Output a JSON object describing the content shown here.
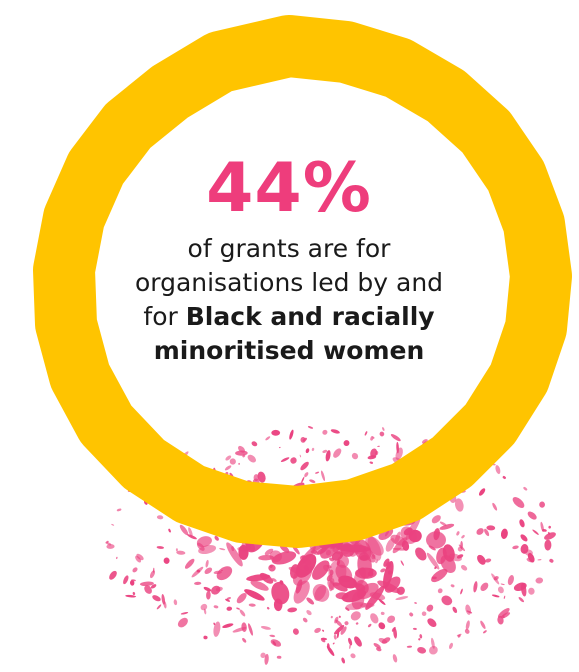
{
  "stat": {
    "percent": "44%",
    "desc_regular": "of grants are for organisations led by and for",
    "desc_bold": "Black and racially minoritised women"
  },
  "colors": {
    "ring": "#ffc400",
    "percent": "#ee3d7c",
    "splatter": "#ea4280",
    "text": "#1a1a1a"
  }
}
